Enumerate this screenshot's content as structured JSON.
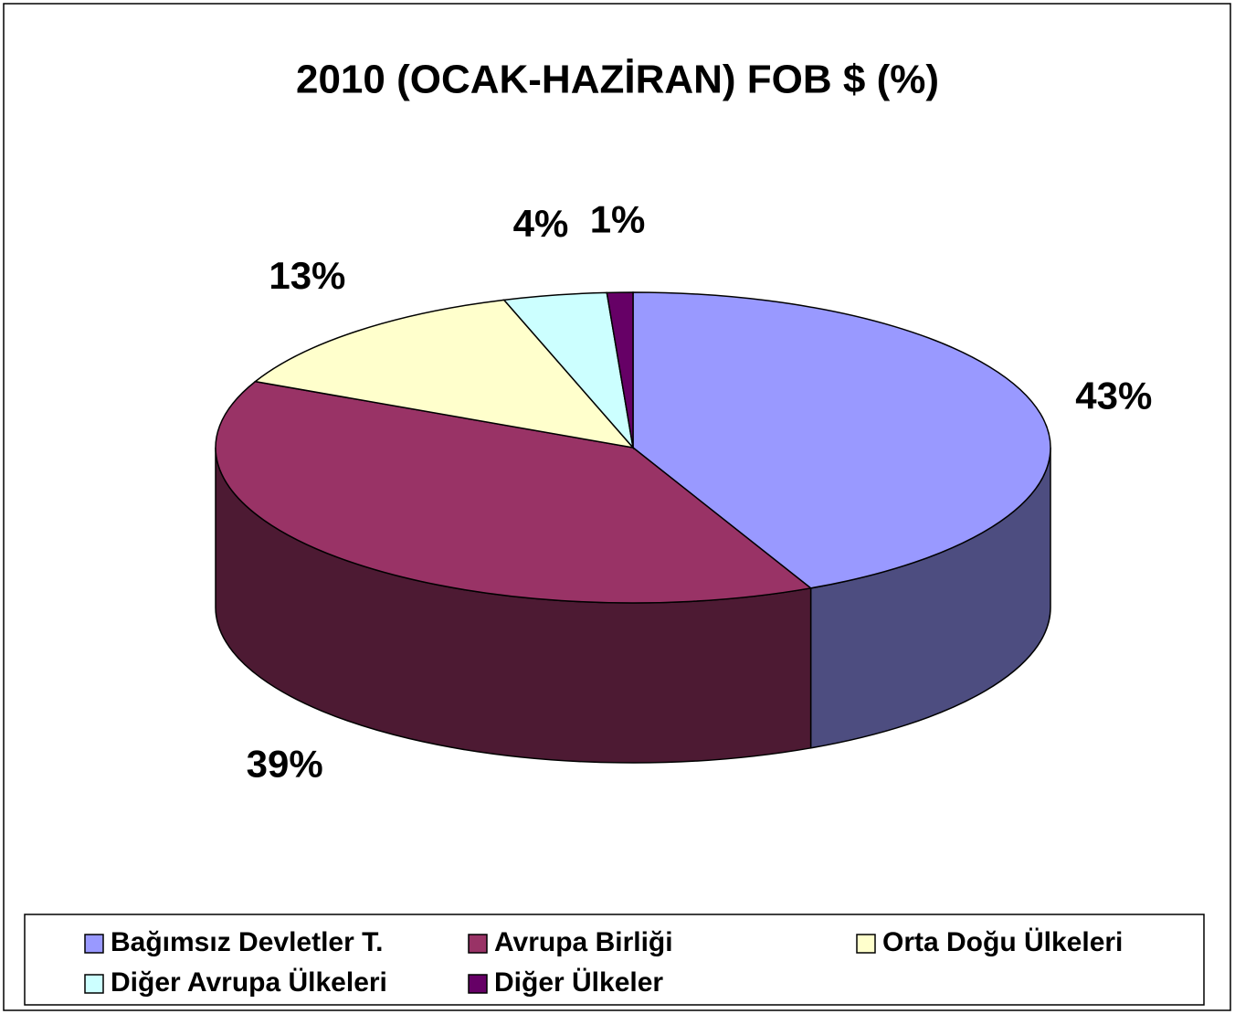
{
  "chart_data": {
    "type": "pie3d",
    "title": "2010 (OCAK-HAZİRAN) FOB $ (%)",
    "categories": [
      "Bağımsız Devletler T.",
      "Avrupa Birliği",
      "Orta Doğu Ülkeleri",
      "Diğer Avrupa Ülkeleri",
      "Diğer Ülkeler"
    ],
    "values": [
      43,
      39,
      13,
      4,
      1
    ],
    "value_labels": [
      "43%",
      "39%",
      "13%",
      "4%",
      "1%"
    ],
    "colors": [
      "#9999ff",
      "#993366",
      "#ffffcc",
      "#ccffff",
      "#660066"
    ],
    "legend": "bottom"
  }
}
